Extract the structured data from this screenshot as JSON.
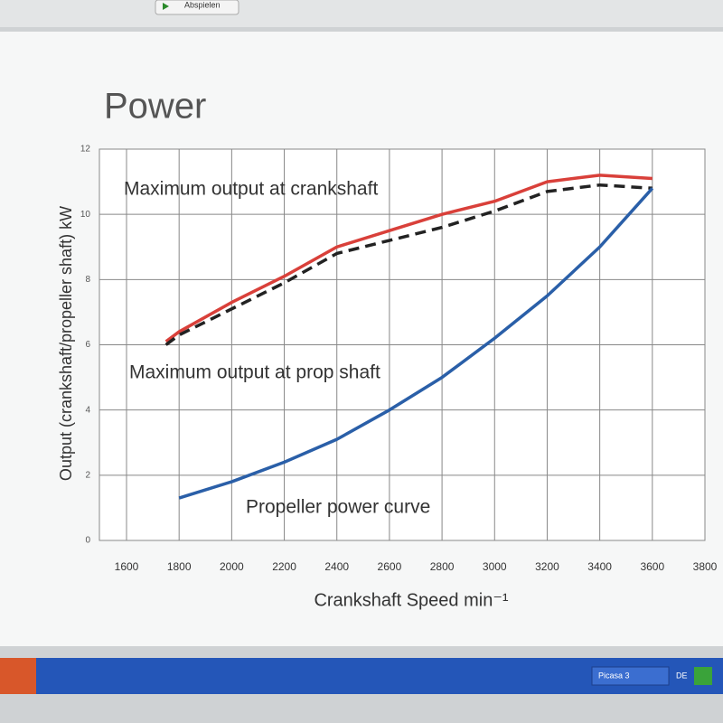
{
  "screen": {
    "toolbar_button": "Abspielen",
    "taskbar_items": [
      "Picasa 3",
      "DE"
    ]
  },
  "chart_data": {
    "type": "line",
    "title": "Power",
    "x_label": "Crankshaft Speed min⁻¹",
    "y_label": "Output (crankshaft/propeller shaft) kW",
    "x": [
      1750,
      1800,
      2000,
      2200,
      2400,
      2600,
      2800,
      3000,
      3200,
      3400,
      3600
    ],
    "series": [
      {
        "name": "Maximum output at crankshaft",
        "color": "#d9403a",
        "dashed": false,
        "values": [
          6.1,
          6.4,
          7.3,
          8.1,
          9.0,
          9.5,
          10.0,
          10.4,
          11.0,
          11.2,
          11.1
        ]
      },
      {
        "name": "Maximum output at prop shaft",
        "color": "#222222",
        "dashed": true,
        "values": [
          6.0,
          6.3,
          7.1,
          7.9,
          8.8,
          9.2,
          9.6,
          10.1,
          10.7,
          10.9,
          10.8
        ]
      },
      {
        "name": "Propeller power curve",
        "color": "#2a5fa8",
        "dashed": false,
        "values": [
          null,
          1.3,
          1.8,
          2.4,
          3.1,
          4.0,
          5.0,
          6.2,
          7.5,
          9.0,
          10.8
        ]
      }
    ],
    "xlim": [
      1600,
      3800
    ],
    "xticks": [
      1600,
      1800,
      2000,
      2200,
      2400,
      2600,
      2800,
      3000,
      3200,
      3400,
      3600,
      3800
    ],
    "ylim": [
      0,
      12
    ],
    "yticks": [
      0,
      2,
      4,
      6,
      8,
      10,
      12
    ],
    "grid": true
  }
}
